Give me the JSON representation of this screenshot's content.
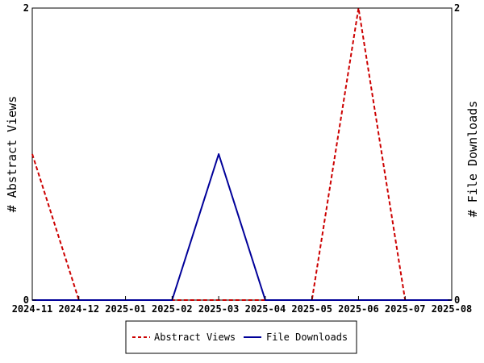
{
  "chart_data": {
    "type": "line",
    "x_categories": [
      "2024-11",
      "2024-12",
      "2025-01",
      "2025-02",
      "2025-03",
      "2025-04",
      "2025-05",
      "2025-06",
      "2025-07",
      "2025-08"
    ],
    "series": [
      {
        "name": "Abstract Views",
        "axis": "left",
        "color": "#cc0000",
        "dash": true,
        "values": [
          1,
          0,
          0,
          0,
          0,
          0,
          0,
          2,
          0,
          0
        ]
      },
      {
        "name": "File Downloads",
        "axis": "right",
        "color": "#000099",
        "dash": false,
        "values": [
          0,
          0,
          0,
          0,
          1,
          0,
          0,
          0,
          0,
          0
        ]
      }
    ],
    "y_left": {
      "label": "# Abstract Views",
      "ticks": [
        "0",
        "2"
      ],
      "range": [
        0,
        2
      ]
    },
    "y_right": {
      "label": "# File Downloads",
      "ticks": [
        "0",
        "2"
      ],
      "range": [
        0,
        2
      ]
    },
    "legend": {
      "placement": "bottom"
    }
  }
}
